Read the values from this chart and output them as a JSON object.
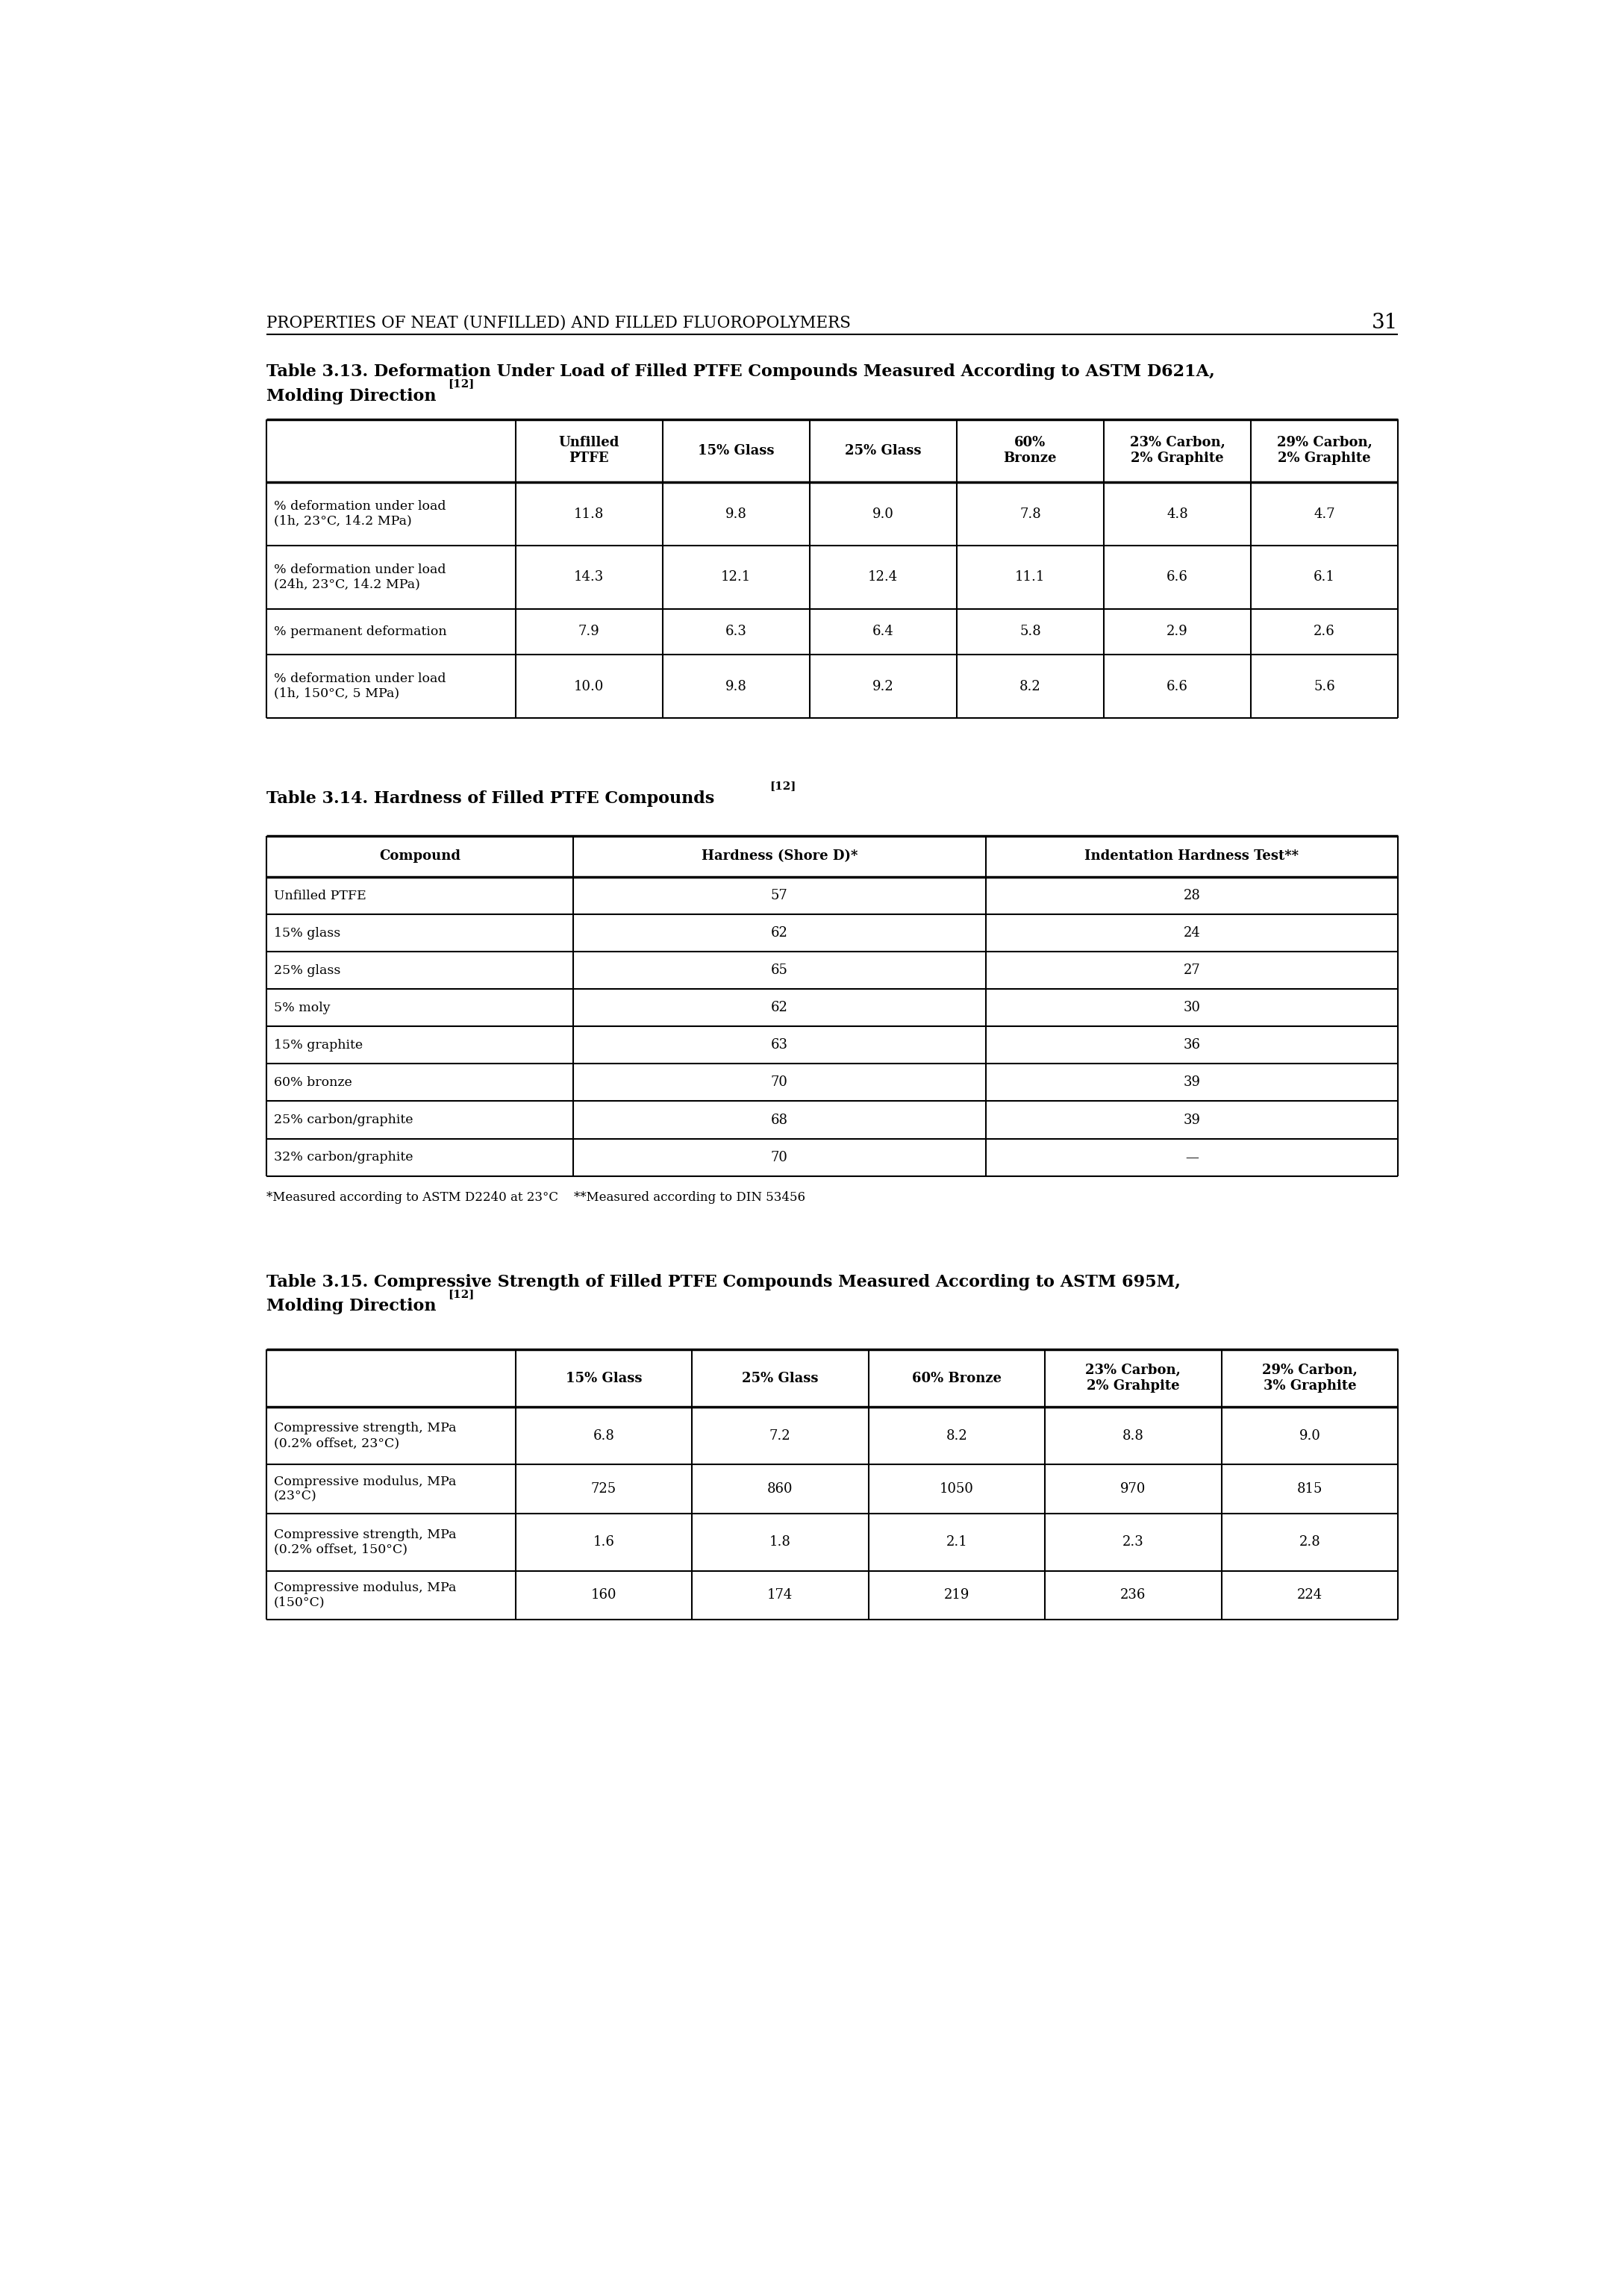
{
  "page_header": "PROPERTIES OF NEAT (UNFILLED) AND FILLED FLUOROPOLYMERS",
  "page_number": "31",
  "table1_title_line1": "Table 3.13. Deformation Under Load of Filled PTFE Compounds Measured According to ASTM D621A,",
  "table1_title_line2": "Molding Direction",
  "table1_title_super": "[12]",
  "table1_headers": [
    "",
    "Unfilled\nPTFE",
    "15% Glass",
    "25% Glass",
    "60%\nBronze",
    "23% Carbon,\n2% Graphite",
    "29% Carbon,\n2% Graphite"
  ],
  "table1_rows": [
    [
      "% deformation under load\n(1h, 23°C, 14.2 MPa)",
      "11.8",
      "9.8",
      "9.0",
      "7.8",
      "4.8",
      "4.7"
    ],
    [
      "% deformation under load\n(24h, 23°C, 14.2 MPa)",
      "14.3",
      "12.1",
      "12.4",
      "11.1",
      "6.6",
      "6.1"
    ],
    [
      "% permanent deformation",
      "7.9",
      "6.3",
      "6.4",
      "5.8",
      "2.9",
      "2.6"
    ],
    [
      "% deformation under load\n(1h, 150°C, 5 MPa)",
      "10.0",
      "9.8",
      "9.2",
      "8.2",
      "6.6",
      "5.6"
    ]
  ],
  "table2_title": "Table 3.14. Hardness of Filled PTFE Compounds",
  "table2_title_super": "[12]",
  "table2_headers": [
    "Compound",
    "Hardness (Shore D)*",
    "Indentation Hardness Test**"
  ],
  "table2_rows": [
    [
      "Unfilled PTFE",
      "57",
      "28"
    ],
    [
      "15% glass",
      "62",
      "24"
    ],
    [
      "25% glass",
      "65",
      "27"
    ],
    [
      "5% moly",
      "62",
      "30"
    ],
    [
      "15% graphite",
      "63",
      "36"
    ],
    [
      "60% bronze",
      "70",
      "39"
    ],
    [
      "25% carbon/graphite",
      "68",
      "39"
    ],
    [
      "32% carbon/graphite",
      "70",
      "—"
    ]
  ],
  "table2_footnote": "*Measured according to ASTM D2240 at 23°C    **Measured according to DIN 53456",
  "table3_title_line1": "Table 3.15. Compressive Strength of Filled PTFE Compounds Measured According to ASTM 695M,",
  "table3_title_line2": "Molding Direction",
  "table3_title_super": "[12]",
  "table3_headers": [
    "",
    "15% Glass",
    "25% Glass",
    "60% Bronze",
    "23% Carbon,\n2% Grahpite",
    "29% Carbon,\n3% Graphite"
  ],
  "table3_rows": [
    [
      "Compressive strength, MPa\n(0.2% offset, 23°C)",
      "6.8",
      "7.2",
      "8.2",
      "8.8",
      "9.0"
    ],
    [
      "Compressive modulus, MPa\n(23°C)",
      "725",
      "860",
      "1050",
      "970",
      "815"
    ],
    [
      "Compressive strength, MPa\n(0.2% offset, 150°C)",
      "1.6",
      "1.8",
      "2.1",
      "2.3",
      "2.8"
    ],
    [
      "Compressive modulus, MPa\n(150°C)",
      "160",
      "174",
      "219",
      "236",
      "224"
    ]
  ]
}
